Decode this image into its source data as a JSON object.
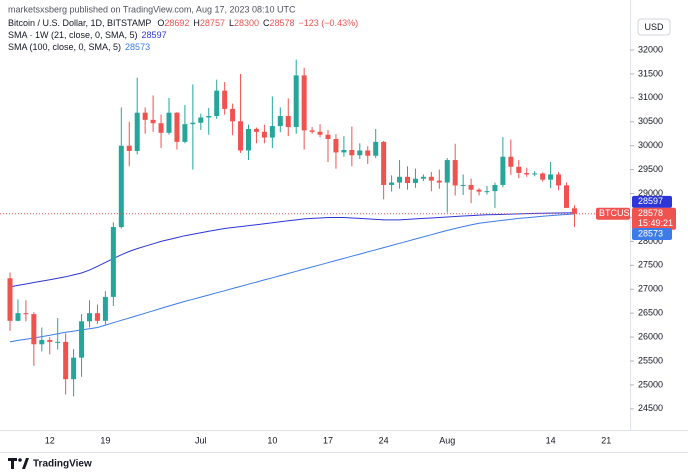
{
  "chart_data": {
    "type": "candlestick",
    "author_line": "marketsxsberg published on TradingView.com, Aug 17, 2023 08:10 UTC",
    "title": "Bitcoin / U.S. Dollar, 1D, BITSTAMP",
    "change_label": "−123 (−0.43%)",
    "ohlc_letters": [
      "O",
      "H",
      "L",
      "C"
    ],
    "currency": "USD",
    "symbol": "BTCUSD",
    "countdown": "15:49:21",
    "brand": "TradingView",
    "up_color": "#26a69a",
    "down_color": "#ef5350",
    "grid": false,
    "ylim": [
      24100,
      32460
    ],
    "yticks": [
      24500,
      25000,
      25500,
      26000,
      26500,
      27000,
      27500,
      28000,
      28500,
      29000,
      29500,
      30000,
      30500,
      31000,
      31500,
      32000
    ],
    "categories": [
      null,
      null,
      null,
      null,
      null,
      "12",
      null,
      null,
      null,
      null,
      null,
      null,
      "19",
      null,
      null,
      null,
      null,
      null,
      null,
      null,
      null,
      null,
      null,
      null,
      "Jul",
      null,
      null,
      null,
      null,
      null,
      null,
      null,
      null,
      "10",
      null,
      null,
      null,
      null,
      null,
      null,
      "17",
      null,
      null,
      null,
      null,
      null,
      null,
      "24",
      null,
      null,
      null,
      null,
      null,
      null,
      null,
      "Aug",
      null,
      null,
      null,
      null,
      null,
      null,
      null,
      null,
      null,
      null,
      null,
      null,
      "14",
      null,
      null,
      null,
      null,
      null,
      null,
      "21"
    ],
    "open": [
      27230,
      26340,
      26500,
      26480,
      25850,
      25940,
      25900,
      25900,
      25120,
      25570,
      26330,
      26500,
      26340,
      26840,
      28300,
      30000,
      29890,
      30690,
      30540,
      30470,
      30270,
      30690,
      30080,
      30450,
      30480,
      30590,
      30620,
      31150,
      30770,
      30510,
      29900,
      30350,
      30290,
      30170,
      30410,
      30620,
      30390,
      31470,
      30320,
      30290,
      30230,
      30140,
      29860,
      29910,
      29800,
      29900,
      29790,
      30080,
      29180,
      29230,
      29350,
      29220,
      29310,
      29350,
      29270,
      29230,
      29700,
      29170,
      29180,
      29080,
      29040,
      29050,
      29180,
      29770,
      29560,
      29430,
      29400,
      29420,
      29290,
      29400,
      29170,
      28692,
      null,
      null,
      null,
      null
    ],
    "high": [
      27350,
      26790,
      26770,
      26520,
      26200,
      26000,
      26400,
      26080,
      25750,
      26480,
      26770,
      26680,
      26960,
      28400,
      30800,
      30500,
      31420,
      30800,
      31050,
      30650,
      31000,
      30700,
      30850,
      31280,
      30670,
      30790,
      31380,
      31330,
      30880,
      31500,
      30440,
      30380,
      30440,
      31030,
      30800,
      30990,
      31800,
      31630,
      30390,
      30450,
      30330,
      30240,
      30200,
      30400,
      30050,
      29990,
      30350,
      30100,
      29380,
      29700,
      29570,
      29520,
      29400,
      29450,
      29500,
      29740,
      30040,
      29400,
      29310,
      29110,
      29160,
      29230,
      30180,
      30130,
      29700,
      29540,
      29470,
      29440,
      29660,
      29450,
      29230,
      28757,
      null,
      null,
      null,
      null
    ],
    "low": [
      26130,
      26330,
      26330,
      25400,
      25700,
      25640,
      25740,
      24800,
      24760,
      25170,
      26200,
      26280,
      26260,
      26650,
      28270,
      29570,
      29820,
      30250,
      30290,
      29950,
      30230,
      29920,
      30050,
      29500,
      30330,
      30230,
      30560,
      30650,
      30220,
      29850,
      29700,
      30050,
      30050,
      29950,
      30280,
      30200,
      30250,
      29920,
      30250,
      30180,
      29660,
      29520,
      29770,
      29570,
      29720,
      29620,
      29740,
      28880,
      29040,
      29100,
      29080,
      29120,
      29260,
      29050,
      29100,
      28600,
      28960,
      28970,
      28800,
      28960,
      28980,
      28700,
      29130,
      29390,
      29320,
      29350,
      29360,
      29250,
      29110,
      29070,
      28700,
      28300,
      null,
      null,
      null,
      null
    ],
    "close": [
      26340,
      26500,
      26480,
      25850,
      25940,
      25900,
      25900,
      25120,
      25570,
      26330,
      26500,
      26340,
      26840,
      28300,
      30000,
      29890,
      30690,
      30540,
      30470,
      30270,
      30690,
      30080,
      30450,
      30480,
      30590,
      30620,
      31150,
      30770,
      30510,
      29900,
      30350,
      30290,
      30170,
      30410,
      30620,
      30390,
      31470,
      30320,
      30290,
      30230,
      30140,
      29860,
      29910,
      29800,
      29900,
      29790,
      30080,
      29180,
      29230,
      29350,
      29220,
      29310,
      29350,
      29270,
      29230,
      29700,
      29170,
      29180,
      29080,
      29040,
      29050,
      29180,
      29770,
      29560,
      29430,
      29400,
      29420,
      29290,
      29400,
      29170,
      28700,
      28578,
      null,
      null,
      null,
      null
    ],
    "series": [
      {
        "name": "SMA · 1W (21, close, 0, SMA, 5)",
        "color": "#2b35d8",
        "values": [
          27050,
          27080,
          27110,
          27140,
          27170,
          27200,
          27230,
          27260,
          27300,
          27340,
          27400,
          27480,
          27560,
          27640,
          27720,
          27790,
          27850,
          27900,
          27950,
          28000,
          28040,
          28080,
          28120,
          28150,
          28180,
          28210,
          28240,
          28270,
          28290,
          28310,
          28330,
          28350,
          28370,
          28390,
          28410,
          28430,
          28450,
          28470,
          28480,
          28490,
          28500,
          28500,
          28500,
          28490,
          28480,
          28470,
          28460,
          28450,
          28450,
          28450,
          28460,
          28470,
          28480,
          28490,
          28500,
          28510,
          28520,
          28530,
          28540,
          28550,
          28555,
          28560,
          28565,
          28570,
          28575,
          28580,
          28585,
          28588,
          28591,
          28594,
          28596,
          28597,
          null,
          null,
          null,
          null
        ]
      },
      {
        "name": "SMA (100, close, 0, SMA, 5)",
        "color": "#3d7be8",
        "values": [
          25900,
          25930,
          25955,
          25980,
          26010,
          26040,
          26070,
          26100,
          26125,
          26150,
          26175,
          26200,
          26250,
          26300,
          26350,
          26400,
          26450,
          26500,
          26550,
          26600,
          26650,
          26700,
          26745,
          26790,
          26835,
          26880,
          26925,
          26970,
          27015,
          27060,
          27105,
          27150,
          27195,
          27240,
          27285,
          27330,
          27375,
          27420,
          27465,
          27510,
          27555,
          27600,
          27645,
          27690,
          27735,
          27780,
          27825,
          27870,
          27915,
          27960,
          28005,
          28050,
          28095,
          28140,
          28185,
          28230,
          28270,
          28310,
          28345,
          28380,
          28400,
          28420,
          28440,
          28460,
          28480,
          28495,
          28510,
          28525,
          28540,
          28552,
          28563,
          28573,
          null,
          null,
          null,
          null
        ]
      }
    ]
  }
}
